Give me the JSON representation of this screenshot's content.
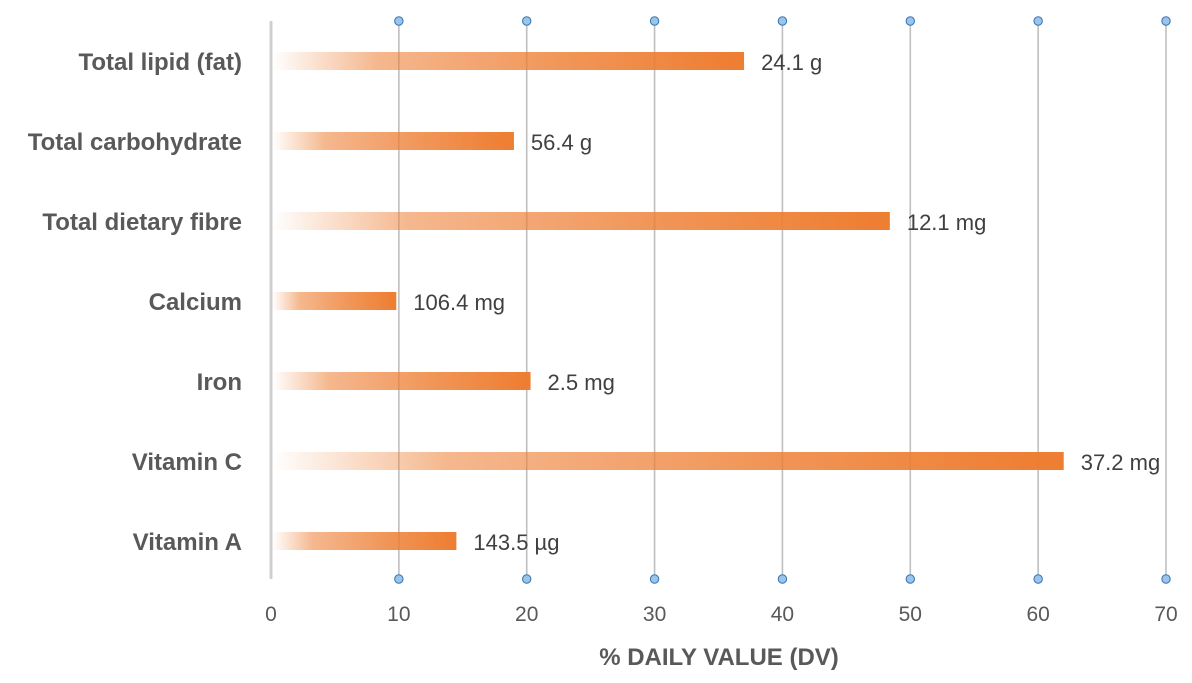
{
  "chart_data": {
    "type": "bar",
    "orientation": "horizontal",
    "categories": [
      "Total lipid (fat)",
      "Total carbohydrate",
      "Total dietary fibre",
      "Calcium",
      "Iron",
      "Vitamin C",
      "Vitamin A"
    ],
    "values": [
      37,
      19,
      48.4,
      9.8,
      20.3,
      62,
      14.5
    ],
    "data_labels": [
      "24.1 g",
      "56.4 g",
      "12.1 mg",
      "106.4 mg",
      "2.5 mg",
      "37.2 mg",
      "143.5 µg"
    ],
    "xlabel": "% DAILY VALUE (DV)",
    "ylabel": "",
    "xlim": [
      0,
      70
    ],
    "xticks": [
      "0",
      "10",
      "20",
      "30",
      "40",
      "50",
      "60",
      "70"
    ],
    "grid": "vertical",
    "bar_color": "#ED7D31",
    "bar_fill_style": "gradient from transparent (left) to orange (right)",
    "gridline_color": "#BFBFBF",
    "marker_color": "#9DC3E6",
    "legend": "none"
  }
}
